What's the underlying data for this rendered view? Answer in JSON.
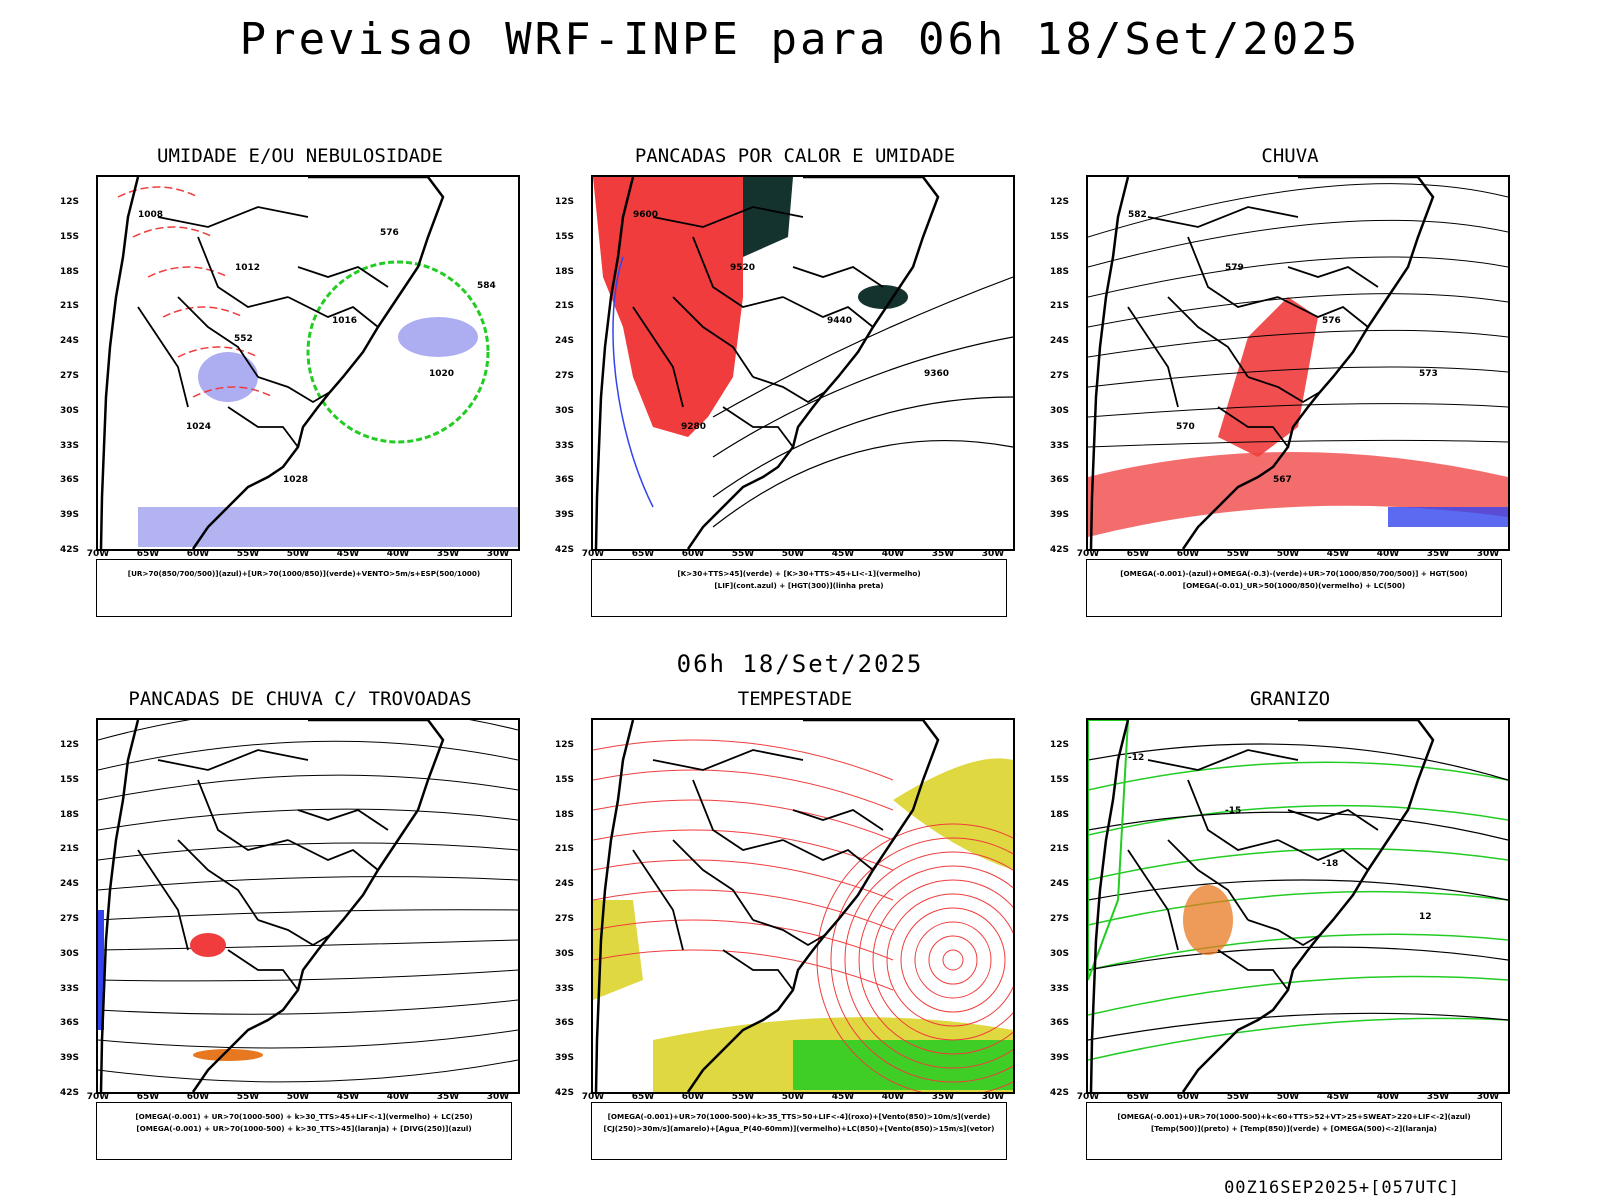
{
  "title": "Previsao WRF-INPE  para 06h 18/Set/2025",
  "mid_time": "06h 18/Set/2025",
  "footer": "00Z16SEP2025+[057UTC]",
  "lat_labels": [
    "12S",
    "15S",
    "18S",
    "21S",
    "24S",
    "27S",
    "30S",
    "33S",
    "36S",
    "39S",
    "42S"
  ],
  "lon_labels": [
    "70W",
    "65W",
    "60W",
    "55W",
    "50W",
    "45W",
    "40W",
    "35W",
    "30W"
  ],
  "colors": {
    "red": "#f03c3c",
    "green": "#22cc22",
    "blue": "#3344ee",
    "lavender": "#9999ee",
    "darkgreen": "#14332e",
    "yellow": "#e0d840",
    "orange": "#e87820"
  },
  "panels": [
    {
      "id": "umidade",
      "title": "UMIDADE E/OU NEBULOSIDADE",
      "legend": [
        "[UR>70(850/700/500)](azul)+[UR>70(1000/850)](verde)+VENTO>5m/s+ESP(500/1000)"
      ],
      "contour_labels": [
        "1008",
        "1012",
        "1016",
        "1020",
        "1024",
        "1028",
        "576",
        "584",
        "552"
      ]
    },
    {
      "id": "pancadas_calor",
      "title": "PANCADAS POR CALOR E UMIDADE",
      "legend": [
        "[K>30+TTS>45](verde) + [K>30+TTS>45+LI<-1](vermelho)",
        "[LIF](cont.azul) + [HGT(300)](linha preta)"
      ],
      "contour_labels": [
        "9600",
        "9520",
        "9440",
        "9360",
        "9280"
      ]
    },
    {
      "id": "chuva",
      "title": "CHUVA",
      "legend": [
        "[OMEGA(-0.001)-(azul)+OMEGA(-0.3)-(verde)+UR>70(1000/850/700/500)] + HGT(500)",
        "[OMEGA(-0.01)_UR>50(1000/850)(vermelho) + LC(500)"
      ],
      "contour_labels": [
        "582",
        "579",
        "576",
        "573",
        "570",
        "567"
      ]
    },
    {
      "id": "pancadas_trovoadas",
      "title": "PANCADAS DE CHUVA C/ TROVOADAS",
      "legend": [
        "[OMEGA(-0.001) + UR>70(1000-500) + k>30_TTS>45+LIF<-1](vermelho) + LC(250)",
        "[OMEGA(-0.001) + UR>70(1000-500) + k>30_TTS>45](laranja) + [DIVG(250)](azul)"
      ],
      "contour_labels": []
    },
    {
      "id": "tempestade",
      "title": "TEMPESTADE",
      "legend": [
        "[OMEGA(-0.001)+UR>70(1000-500)+k>35_TTS>50+LIF<-4](roxo)+[Vento(850)>10m/s](verde)",
        "[CJ(250)>30m/s](amarelo)+[Agua_P(40-60mm)](vermelho)+LC(850)+[Vento(850)>15m/s](vetor)"
      ],
      "contour_labels": []
    },
    {
      "id": "granizo",
      "title": "GRANIZO",
      "legend": [
        "[OMEGA(-0.001)+UR>70(1000-500)+k<60+TTS>52+VT>25+SWEAT>220+LIF<-2](azul)",
        "[Temp(500)](preto) + [Temp(850)](verde) + [OMEGA(500)<-2](laranja)"
      ],
      "contour_labels": [
        "-12",
        "-15",
        "-18",
        "12"
      ]
    }
  ]
}
